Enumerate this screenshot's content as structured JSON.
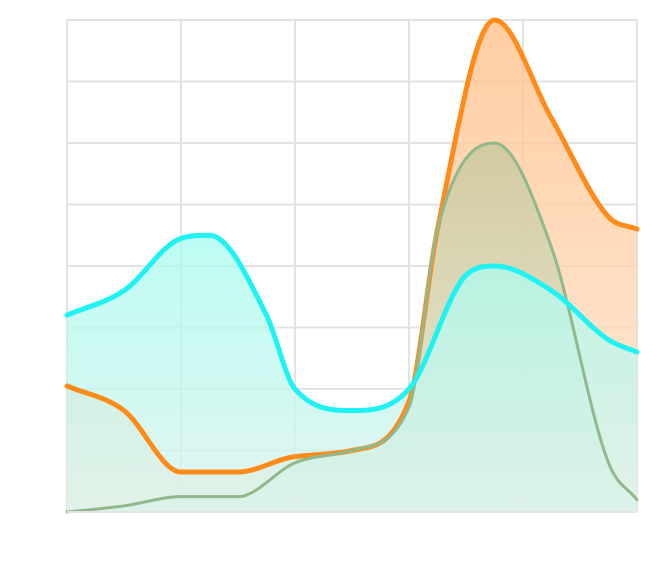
{
  "chart_data": {
    "type": "area",
    "title": "",
    "xlabel": "",
    "ylabel": "",
    "x": [
      0,
      1,
      2,
      3,
      4,
      5
    ],
    "xlim": [
      0,
      5
    ],
    "ylim": [
      0,
      8
    ],
    "grid": true,
    "legend": "none",
    "tick_labels_visible": false,
    "series": [
      {
        "color": "#ff8c1a",
        "fill_top": "#ffbe85",
        "fill_bottom": "#ffe6d2",
        "x": [
          0,
          0.5,
          1,
          1.5,
          2,
          2.5,
          3,
          3.25,
          3.75,
          4.25,
          4.75,
          5
        ],
        "values": [
          2.05,
          1.65,
          0.65,
          0.65,
          0.9,
          1.0,
          1.8,
          4.6,
          8.0,
          6.4,
          4.8,
          4.6
        ]
      },
      {
        "color": "#8fb98d",
        "fill_top": "#c5c79c",
        "fill_bottom": "#e3eddc",
        "x": [
          0,
          0.5,
          1,
          1.5,
          2,
          2.5,
          3,
          3.25,
          3.75,
          4.25,
          4.75,
          5
        ],
        "values": [
          0,
          0.1,
          0.25,
          0.25,
          0.8,
          1.0,
          1.7,
          4.6,
          6.0,
          4.3,
          0.8,
          0.2
        ]
      },
      {
        "color": "#1ef2f2",
        "fill_top": "#a8fbef",
        "fill_bottom": "#d9f3ec",
        "x": [
          0,
          0.5,
          1,
          1.25,
          1.75,
          2,
          2.5,
          3,
          3.5,
          3.75,
          4.25,
          4.75,
          5
        ],
        "values": [
          3.2,
          3.6,
          4.45,
          4.5,
          3.2,
          2.0,
          1.65,
          2.0,
          3.85,
          4.0,
          3.6,
          2.8,
          2.6
        ]
      }
    ]
  }
}
